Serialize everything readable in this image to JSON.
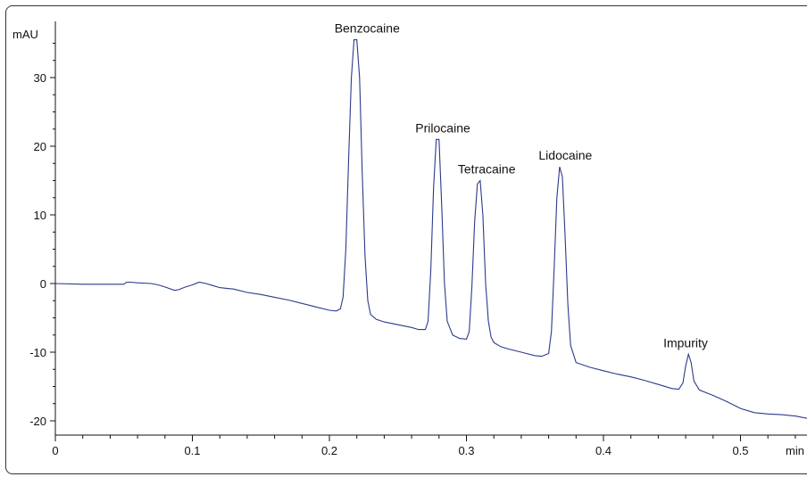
{
  "chart_data": {
    "type": "line",
    "title": "",
    "xlabel": "min",
    "ylabel": "mAU",
    "xlim": [
      0,
      0.55
    ],
    "ylim": [
      -22.5,
      36.5
    ],
    "x_ticks": [
      0,
      0.1,
      0.2,
      0.3,
      0.4,
      0.5
    ],
    "x_tick_labels": [
      "0",
      "0.1",
      "0.2",
      "0.3",
      "0.4",
      "0.5"
    ],
    "y_ticks": [
      -20,
      -10,
      0,
      10,
      20,
      30
    ],
    "y_tick_labels": [
      "-20",
      "-10",
      "0",
      "10",
      "20",
      "30"
    ],
    "grid": false,
    "line_color": "#2b3a8c",
    "series": [
      {
        "x": [
          0,
          0.02,
          0.04,
          0.05,
          0.052,
          0.055,
          0.06,
          0.07,
          0.075,
          0.08,
          0.087,
          0.09,
          0.095,
          0.1,
          0.105,
          0.11,
          0.115,
          0.12,
          0.125,
          0.13,
          0.14,
          0.15,
          0.16,
          0.17,
          0.18,
          0.19,
          0.2,
          0.205,
          0.208,
          0.21,
          0.212,
          0.214,
          0.216,
          0.218,
          0.22,
          0.222,
          0.224,
          0.226,
          0.228,
          0.23,
          0.234,
          0.24,
          0.25,
          0.26,
          0.265,
          0.27,
          0.272,
          0.274,
          0.276,
          0.278,
          0.28,
          0.282,
          0.284,
          0.286,
          0.29,
          0.295,
          0.3,
          0.302,
          0.304,
          0.306,
          0.308,
          0.31,
          0.312,
          0.314,
          0.316,
          0.318,
          0.32,
          0.325,
          0.33,
          0.34,
          0.35,
          0.355,
          0.36,
          0.362,
          0.364,
          0.366,
          0.368,
          0.37,
          0.372,
          0.374,
          0.376,
          0.38,
          0.39,
          0.4,
          0.41,
          0.42,
          0.43,
          0.44,
          0.45,
          0.455,
          0.458,
          0.46,
          0.462,
          0.464,
          0.466,
          0.47,
          0.48,
          0.49,
          0.5,
          0.51,
          0.52,
          0.53,
          0.54,
          0.55
        ],
        "y": [
          0,
          -0.1,
          -0.1,
          -0.1,
          0.2,
          0.2,
          0.1,
          0.0,
          -0.2,
          -0.5,
          -1.0,
          -0.9,
          -0.5,
          -0.2,
          0.2,
          0.0,
          -0.3,
          -0.6,
          -0.7,
          -0.8,
          -1.3,
          -1.6,
          -2.0,
          -2.4,
          -2.9,
          -3.4,
          -3.9,
          -4.0,
          -3.7,
          -2.0,
          5.0,
          18.0,
          30.0,
          35.5,
          35.5,
          30.0,
          16.0,
          4.0,
          -2.5,
          -4.5,
          -5.2,
          -5.6,
          -6.0,
          -6.4,
          -6.7,
          -6.7,
          -5.5,
          2.0,
          14.0,
          21.0,
          21.0,
          11.0,
          0.0,
          -5.5,
          -7.5,
          -8.0,
          -8.1,
          -7.0,
          -0.5,
          9.0,
          14.5,
          15.0,
          10.0,
          0.0,
          -5.5,
          -7.8,
          -8.6,
          -9.2,
          -9.5,
          -10.0,
          -10.5,
          -10.6,
          -10.2,
          -7.0,
          2.0,
          12.5,
          17.0,
          15.5,
          7.0,
          -3.0,
          -9.0,
          -11.5,
          -12.2,
          -12.7,
          -13.2,
          -13.6,
          -14.1,
          -14.7,
          -15.3,
          -15.4,
          -14.5,
          -12.0,
          -10.3,
          -11.5,
          -14.2,
          -15.5,
          -16.3,
          -17.2,
          -18.2,
          -18.8,
          -19.0,
          -19.1,
          -19.3,
          -19.7
        ]
      }
    ],
    "annotations": [
      {
        "text": "Benzocaine",
        "x": 0.22,
        "y": 35.5
      },
      {
        "text": "Prilocaine",
        "x": 0.279,
        "y": 21.0
      },
      {
        "text": "Tetracaine",
        "x": 0.31,
        "y": 15.0
      },
      {
        "text": "Lidocaine",
        "x": 0.369,
        "y": 17.0
      },
      {
        "text": "Impurity",
        "x": 0.46,
        "y": -10.3
      }
    ]
  }
}
